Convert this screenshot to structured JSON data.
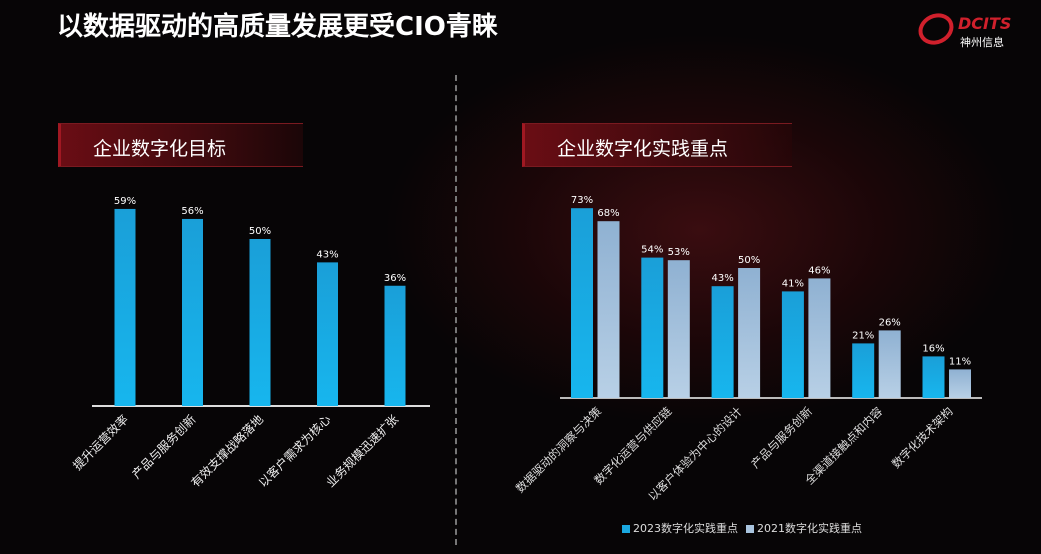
{
  "title": "以数据驱动的高质量发展更受CIO青睐",
  "logo": {
    "en": "DCITS",
    "cn": "神州信息"
  },
  "colors": {
    "bar_2023": "#1aa8e0",
    "bar_2021": "#a9c4de",
    "accent": "#d0202c"
  },
  "chart_data": [
    {
      "type": "bar",
      "title": "企业数字化目标",
      "categories": [
        "提升运营效率",
        "产品与服务创新",
        "有效支撑战略落地",
        "以客户需求为核心",
        "业务规模迅速扩张"
      ],
      "values": [
        59,
        56,
        50,
        43,
        36
      ],
      "data_labels": [
        "59%",
        "56%",
        "50%",
        "43%",
        "36%"
      ],
      "ylim": [
        0,
        100
      ],
      "grid": false
    },
    {
      "type": "bar",
      "title": "企业数字化实践重点",
      "categories": [
        "数据驱动的洞察与决策",
        "数字化运营与供应链",
        "以客户体验为中心的设计",
        "产品与服务创新",
        "全渠道接触点和内容",
        "数字化技术架构"
      ],
      "series": [
        {
          "name": "2023数字化实践重点",
          "values": [
            73,
            54,
            43,
            41,
            21,
            16
          ],
          "data_labels": [
            "73%",
            "54%",
            "43%",
            "41%",
            "21%",
            "16%"
          ]
        },
        {
          "name": "2021数字化实践重点",
          "values": [
            68,
            53,
            50,
            46,
            26,
            11
          ],
          "data_labels": [
            "68%",
            "53%",
            "50%",
            "46%",
            "26%",
            "11%"
          ]
        }
      ],
      "ylim": [
        0,
        100
      ],
      "grid": false,
      "legend": "bottom"
    }
  ]
}
